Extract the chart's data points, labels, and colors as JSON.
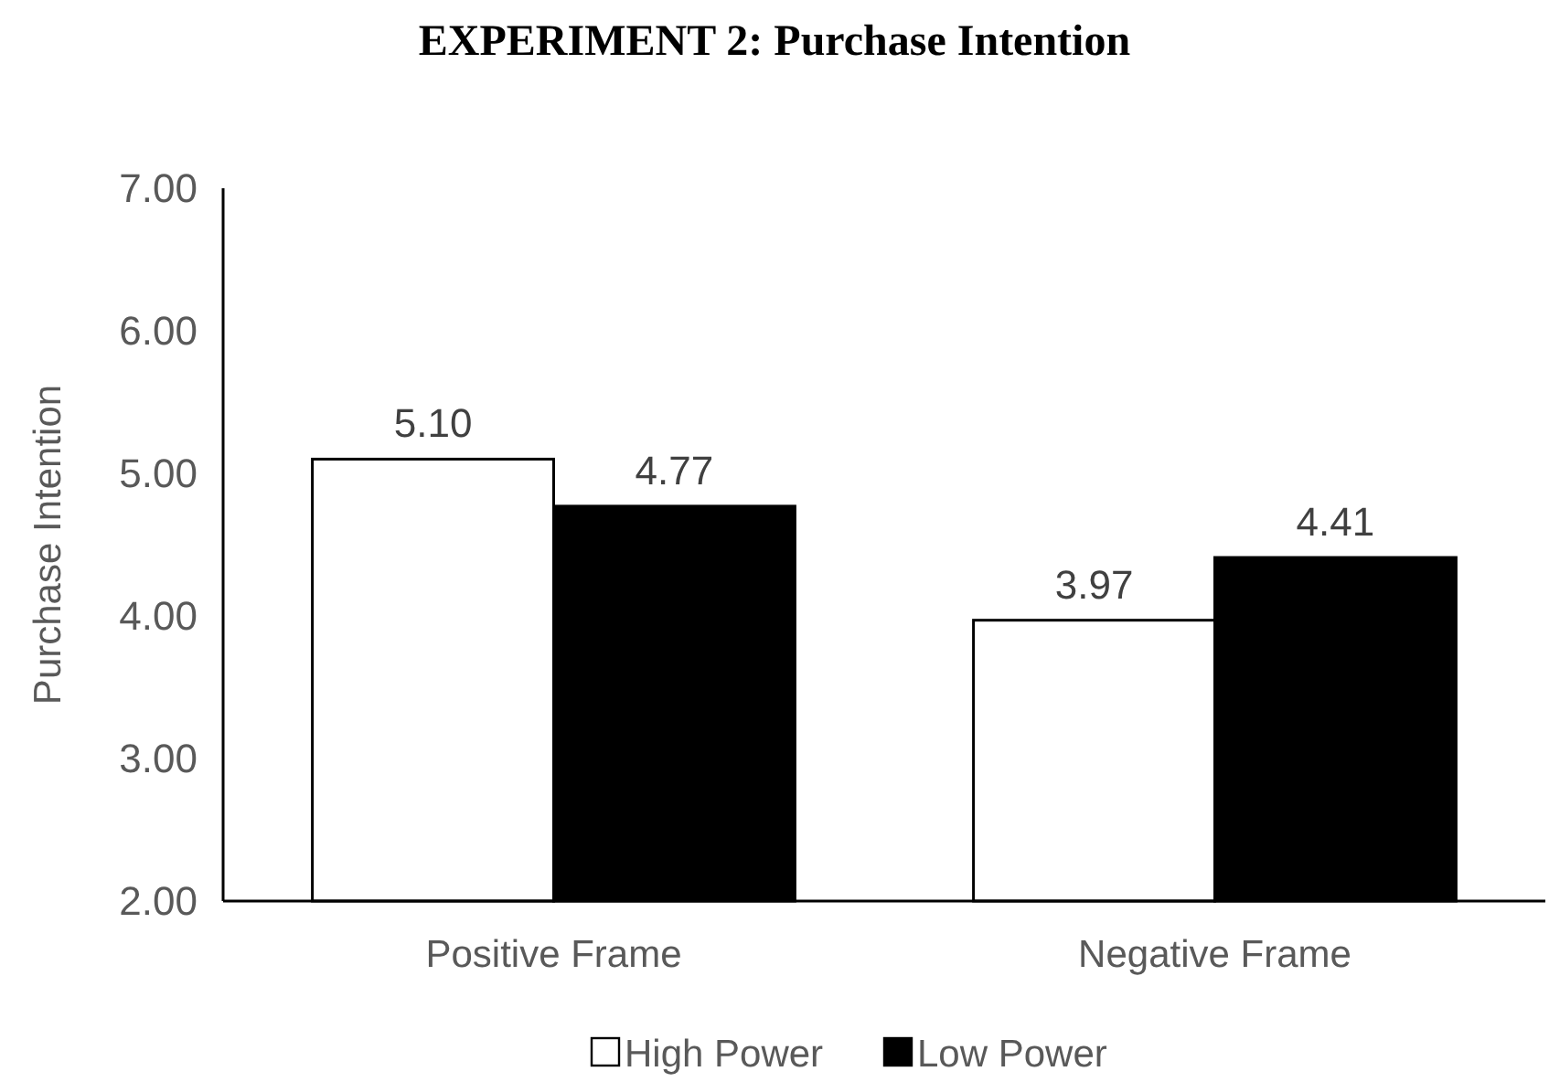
{
  "chart_data": {
    "type": "bar",
    "title": "EXPERIMENT 2: Purchase Intention",
    "ylabel": "Purchase Intention",
    "categories": [
      "Positive Frame",
      "Negative Frame"
    ],
    "series": [
      {
        "name": "High Power",
        "color": "#ffffff",
        "values": [
          5.1,
          3.97
        ]
      },
      {
        "name": "Low Power",
        "color": "#000000",
        "values": [
          4.77,
          4.41
        ]
      }
    ],
    "ylim": [
      2,
      7
    ],
    "yticks": [
      {
        "value": 2,
        "label": "2.00"
      },
      {
        "value": 3,
        "label": "3.00"
      },
      {
        "value": 4,
        "label": "4.00"
      },
      {
        "value": 5,
        "label": "5.00"
      },
      {
        "value": 6,
        "label": "6.00"
      },
      {
        "value": 7,
        "label": "7.00"
      }
    ],
    "value_labels": [
      [
        "5.10",
        "3.97"
      ],
      [
        "4.77",
        "4.41"
      ]
    ],
    "legend": "bottom",
    "grid": false
  }
}
